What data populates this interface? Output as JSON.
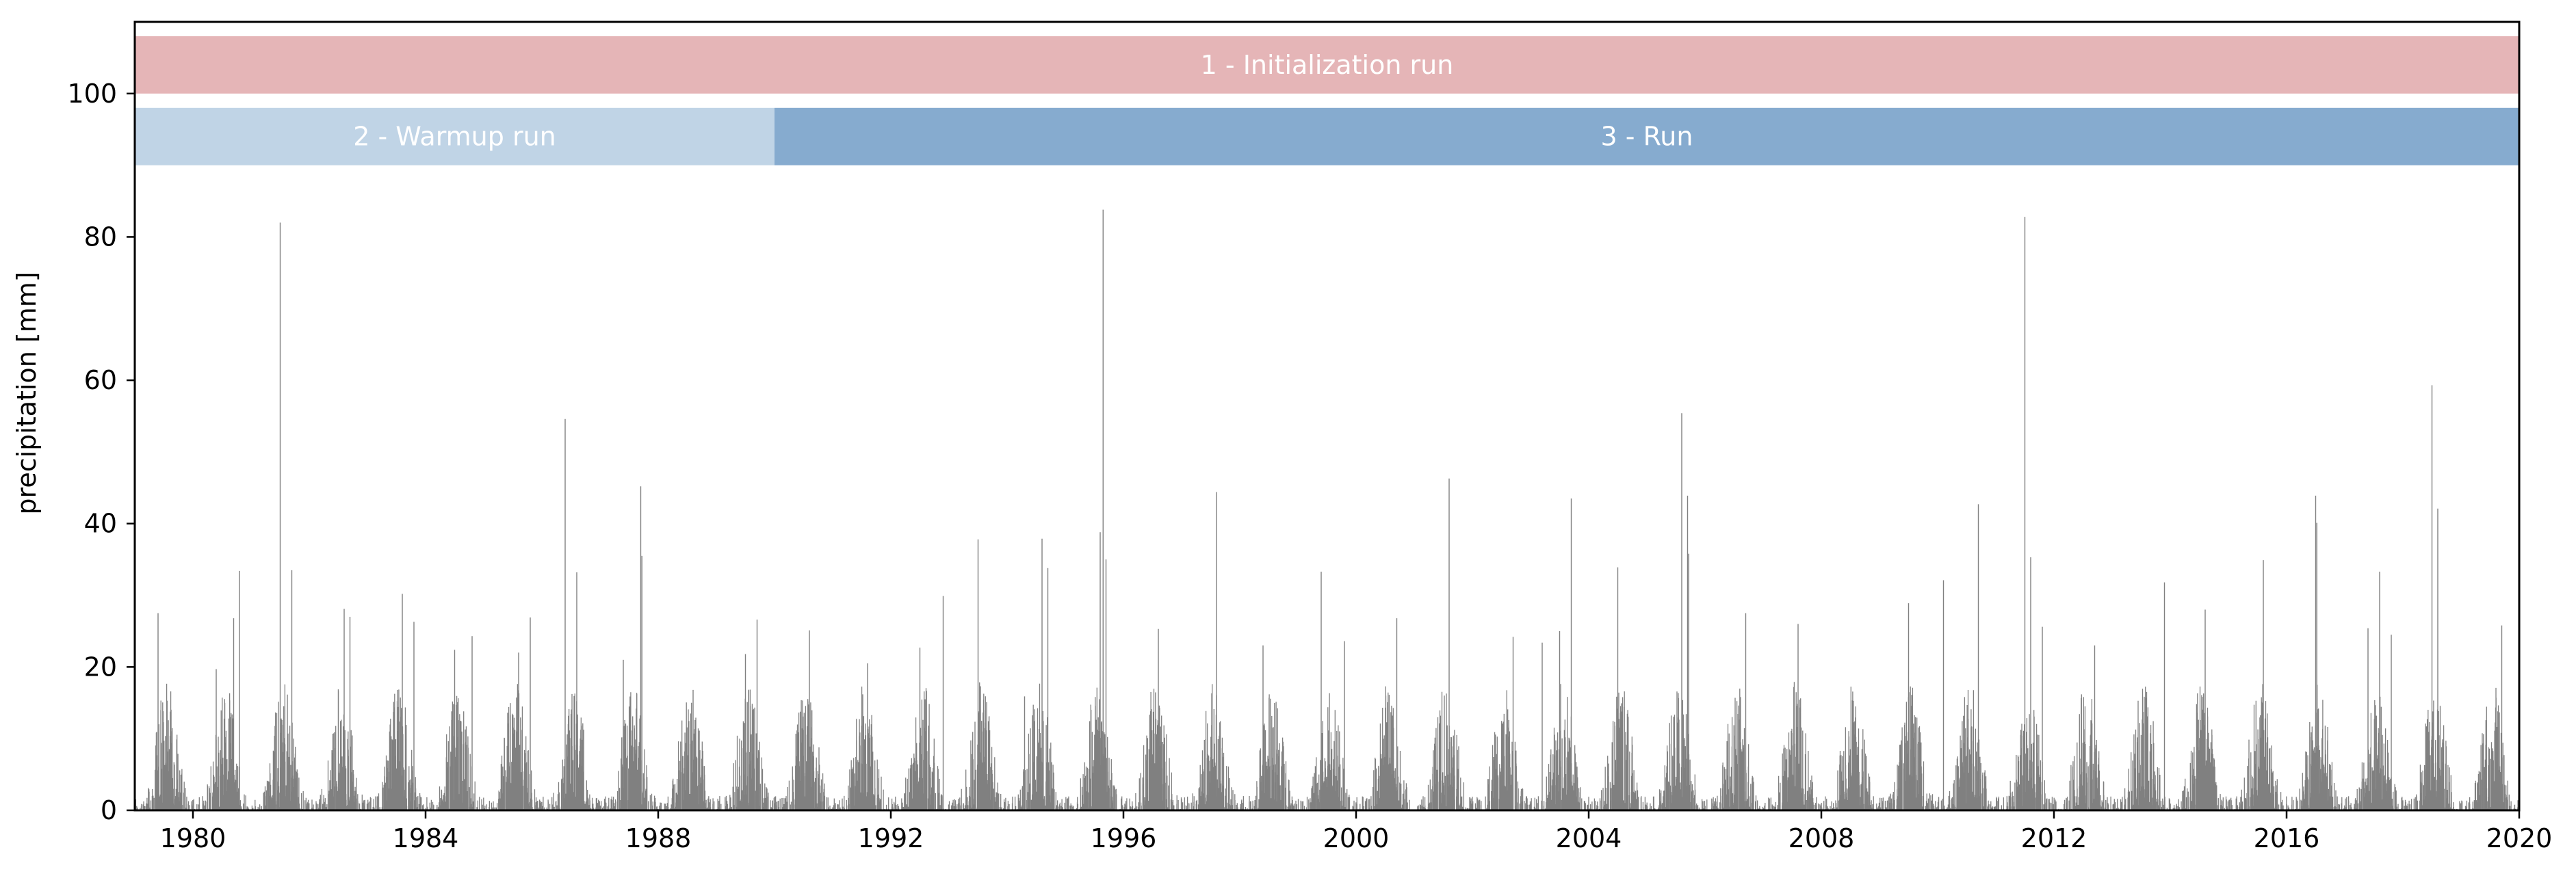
{
  "chart_data": {
    "type": "bar",
    "title": "",
    "xlabel": "",
    "ylabel": "precipitation [mm]",
    "xlim": [
      1979.0,
      2020.0
    ],
    "ylim": [
      0,
      110
    ],
    "x_ticks": [
      "1980",
      "1984",
      "1988",
      "1992",
      "1996",
      "2000",
      "2004",
      "2008",
      "2012",
      "2016",
      "2020"
    ],
    "y_ticks": [
      "0",
      "20",
      "40",
      "60",
      "80",
      "100"
    ],
    "grid": false,
    "legend": "none",
    "series_color": "#808080",
    "resolution": "daily",
    "periods": [
      {
        "label": "1 - Initialization run",
        "start": 1979.0,
        "end": 2020.0,
        "ymin": 100,
        "ymax": 108,
        "color": "#e5b5b7"
      },
      {
        "label": "2 - Warmup run",
        "start": 1979.0,
        "end": 1990.0,
        "ymin": 90,
        "ymax": 98,
        "color": "#c0d4e6"
      },
      {
        "label": "3 - Run",
        "start": 1990.0,
        "end": 2020.0,
        "ymin": 90,
        "ymax": 98,
        "color": "#86abcf"
      }
    ],
    "peak_events": [
      {
        "x": 1979.4,
        "y": 27.5
      },
      {
        "x": 1980.4,
        "y": 19.7
      },
      {
        "x": 1980.7,
        "y": 26.8
      },
      {
        "x": 1980.8,
        "y": 33.4
      },
      {
        "x": 1981.5,
        "y": 82.0
      },
      {
        "x": 1981.7,
        "y": 33.5
      },
      {
        "x": 1982.6,
        "y": 28.1
      },
      {
        "x": 1982.7,
        "y": 27.0
      },
      {
        "x": 1983.6,
        "y": 30.2
      },
      {
        "x": 1983.8,
        "y": 26.3
      },
      {
        "x": 1984.5,
        "y": 22.4
      },
      {
        "x": 1984.8,
        "y": 24.3
      },
      {
        "x": 1985.6,
        "y": 22.0
      },
      {
        "x": 1985.8,
        "y": 26.9
      },
      {
        "x": 1986.4,
        "y": 54.6
      },
      {
        "x": 1986.6,
        "y": 33.2
      },
      {
        "x": 1987.4,
        "y": 21.0
      },
      {
        "x": 1987.7,
        "y": 45.2
      },
      {
        "x": 1987.72,
        "y": 35.5
      },
      {
        "x": 1988.6,
        "y": 16.8
      },
      {
        "x": 1989.5,
        "y": 21.8
      },
      {
        "x": 1989.7,
        "y": 26.6
      },
      {
        "x": 1990.6,
        "y": 25.1
      },
      {
        "x": 1991.6,
        "y": 20.5
      },
      {
        "x": 1992.5,
        "y": 22.7
      },
      {
        "x": 1992.9,
        "y": 29.9
      },
      {
        "x": 1993.5,
        "y": 37.8
      },
      {
        "x": 1994.3,
        "y": 15.9
      },
      {
        "x": 1994.6,
        "y": 37.9
      },
      {
        "x": 1994.7,
        "y": 33.8
      },
      {
        "x": 1995.6,
        "y": 38.8
      },
      {
        "x": 1995.65,
        "y": 83.8
      },
      {
        "x": 1995.7,
        "y": 35.0
      },
      {
        "x": 1996.6,
        "y": 25.3
      },
      {
        "x": 1997.6,
        "y": 44.4
      },
      {
        "x": 1998.4,
        "y": 23.0
      },
      {
        "x": 1999.4,
        "y": 33.3
      },
      {
        "x": 1999.8,
        "y": 23.6
      },
      {
        "x": 2000.7,
        "y": 26.8
      },
      {
        "x": 2001.6,
        "y": 46.3
      },
      {
        "x": 2002.7,
        "y": 24.2
      },
      {
        "x": 2003.2,
        "y": 23.4
      },
      {
        "x": 2003.5,
        "y": 25.0
      },
      {
        "x": 2003.7,
        "y": 43.5
      },
      {
        "x": 2004.5,
        "y": 33.9
      },
      {
        "x": 2005.6,
        "y": 55.4
      },
      {
        "x": 2005.7,
        "y": 43.9
      },
      {
        "x": 2005.72,
        "y": 35.8
      },
      {
        "x": 2006.7,
        "y": 27.5
      },
      {
        "x": 2007.6,
        "y": 26.0
      },
      {
        "x": 2009.5,
        "y": 28.9
      },
      {
        "x": 2010.1,
        "y": 32.1
      },
      {
        "x": 2010.7,
        "y": 42.7
      },
      {
        "x": 2011.5,
        "y": 82.8
      },
      {
        "x": 2011.6,
        "y": 35.3
      },
      {
        "x": 2011.8,
        "y": 25.6
      },
      {
        "x": 2012.7,
        "y": 23.0
      },
      {
        "x": 2013.9,
        "y": 31.8
      },
      {
        "x": 2014.6,
        "y": 28.0
      },
      {
        "x": 2015.6,
        "y": 34.9
      },
      {
        "x": 2016.5,
        "y": 43.9
      },
      {
        "x": 2016.52,
        "y": 40.1
      },
      {
        "x": 2017.4,
        "y": 25.4
      },
      {
        "x": 2017.6,
        "y": 33.3
      },
      {
        "x": 2017.8,
        "y": 24.5
      },
      {
        "x": 2018.5,
        "y": 59.3
      },
      {
        "x": 2018.6,
        "y": 42.1
      },
      {
        "x": 2019.7,
        "y": 25.8
      }
    ]
  }
}
